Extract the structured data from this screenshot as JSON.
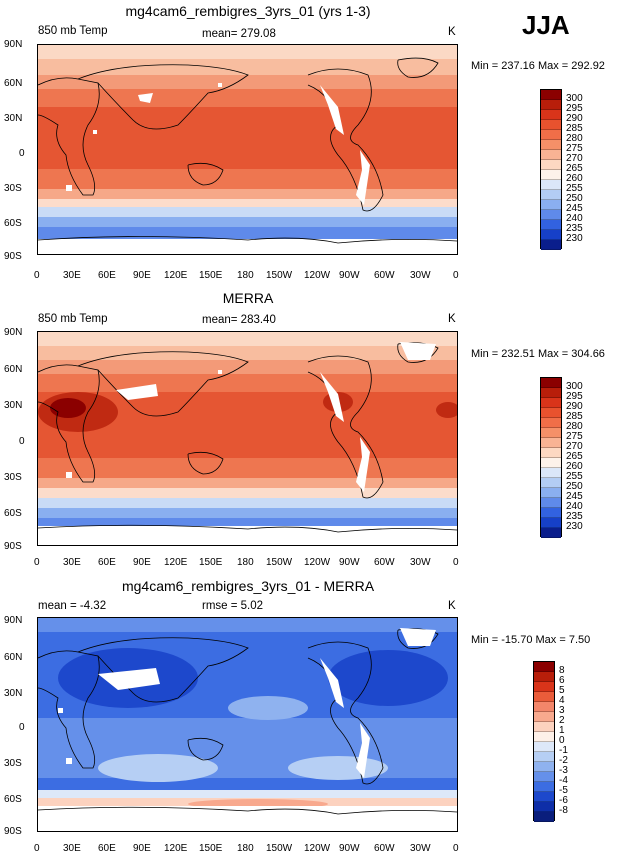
{
  "season": "JJA",
  "xticks": [
    "0",
    "30E",
    "60E",
    "90E",
    "120E",
    "150E",
    "180",
    "150W",
    "120W",
    "90W",
    "60W",
    "30W",
    "0"
  ],
  "yticks": [
    "90N",
    "60N",
    "30N",
    "0",
    "30S",
    "60S",
    "90S"
  ],
  "panels": [
    {
      "title": "mg4cam6_rembigres_3yrs_01 (yrs 1-3)",
      "left_label": "850 mb Temp",
      "center_label": "mean= 279.08",
      "right_label": "K",
      "minmax": "Min = 237.16  Max = 292.92",
      "colorbar": {
        "labels": [
          "300",
          "295",
          "290",
          "285",
          "280",
          "275",
          "270",
          "265",
          "260",
          "255",
          "250",
          "245",
          "240",
          "235",
          "230"
        ],
        "colors": [
          "#8b0000",
          "#b81e0a",
          "#d9341a",
          "#e8522e",
          "#f06e48",
          "#f59068",
          "#f9b394",
          "#fdd8c2",
          "#fdf2ea",
          "#dbe7f9",
          "#b3cdf4",
          "#8aaff0",
          "#5f8aea",
          "#3262e0",
          "#1640c8",
          "#0a1e8c"
        ]
      }
    },
    {
      "title": "MERRA",
      "left_label": "850 mb Temp",
      "center_label": "mean= 283.40",
      "right_label": "K",
      "minmax": "Min = 232.51  Max = 304.66",
      "colorbar": {
        "labels": [
          "300",
          "295",
          "290",
          "285",
          "280",
          "275",
          "270",
          "265",
          "260",
          "255",
          "250",
          "245",
          "240",
          "235",
          "230"
        ],
        "colors": [
          "#8b0000",
          "#b81e0a",
          "#d9341a",
          "#e8522e",
          "#f06e48",
          "#f59068",
          "#f9b394",
          "#fdd8c2",
          "#fdf2ea",
          "#dbe7f9",
          "#b3cdf4",
          "#8aaff0",
          "#5f8aea",
          "#3262e0",
          "#1640c8",
          "#0a1e8c"
        ]
      }
    },
    {
      "title": "mg4cam6_rembigres_3yrs_01 - MERRA",
      "left_label": "mean =   -4.32",
      "center_label": "rmse =     5.02",
      "right_label": "K",
      "minmax": "Min = -15.70  Max =      7.50",
      "colorbar": {
        "labels": [
          "8",
          "6",
          "5",
          "4",
          "3",
          "2",
          "1",
          "0",
          "-1",
          "-2",
          "-3",
          "-4",
          "-5",
          "-6",
          "-8"
        ],
        "colors": [
          "#8b0000",
          "#b81e0a",
          "#d9341a",
          "#ea5c3a",
          "#f3866a",
          "#f8a98e",
          "#fcd2bf",
          "#fdf0e8",
          "#dde8f9",
          "#b6cff4",
          "#8fb2ef",
          "#6590ea",
          "#3c6de2",
          "#1d48cc",
          "#0e2ea8",
          "#0a1e7c"
        ]
      }
    }
  ]
}
